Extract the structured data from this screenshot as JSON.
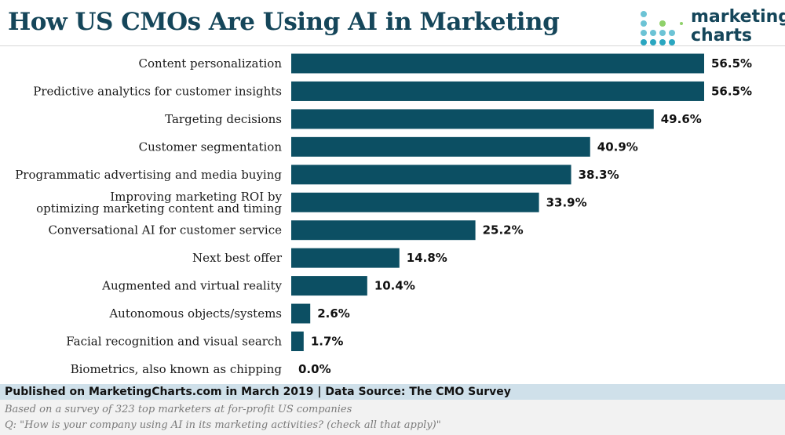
{
  "title": "How US CMOs Are Using AI in Marketing",
  "brand": {
    "line1": "marketing",
    "line2": "charts"
  },
  "footer": {
    "published": "Published on MarketingCharts.com in March 2019 | Data Source: The CMO Survey",
    "note": "Based on a survey of 323 top marketers at for-profit US companies",
    "question": "Q: \"How is your company using AI in its marketing activities? (check all that apply)\""
  },
  "colors": {
    "bar": "#0c4f63",
    "title": "#15465a",
    "footer_band": "#cfe0ea"
  },
  "chart_data": {
    "type": "bar",
    "orientation": "horizontal",
    "value_suffix": "%",
    "categories": [
      [
        "Content personalization"
      ],
      [
        "Predictive analytics for customer insights"
      ],
      [
        "Targeting decisions"
      ],
      [
        "Customer segmentation"
      ],
      [
        "Programmatic advertising and media buying"
      ],
      [
        "Improving marketing ROI by",
        "optimizing marketing content and timing"
      ],
      [
        "Conversational AI for customer service"
      ],
      [
        "Next best offer"
      ],
      [
        "Augmented and virtual reality"
      ],
      [
        "Autonomous objects/systems"
      ],
      [
        "Facial recognition and visual search"
      ],
      [
        "Biometrics, also known as chipping"
      ]
    ],
    "values": [
      56.5,
      56.5,
      49.6,
      40.9,
      38.3,
      33.9,
      25.2,
      14.8,
      10.4,
      2.6,
      1.7,
      0.0
    ],
    "value_labels": [
      "56.5%",
      "56.5%",
      "49.6%",
      "40.9%",
      "38.3%",
      "33.9%",
      "25.2%",
      "14.8%",
      "10.4%",
      "2.6%",
      "1.7%",
      "0.0%"
    ],
    "xlim": [
      0,
      56.5
    ],
    "grid": false,
    "legend": "none"
  }
}
